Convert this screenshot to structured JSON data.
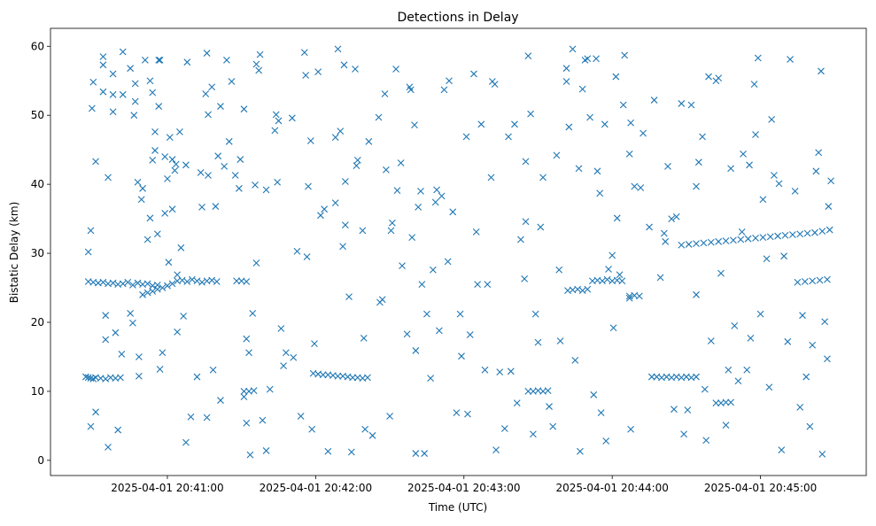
{
  "chart_data": {
    "type": "scatter",
    "title": "Detections in Delay",
    "xlabel": "Time (UTC)",
    "ylabel": "Bistatic Delay (km)",
    "x_units": "seconds after 2025-04-01 20:40:00",
    "xlim": [
      12.7,
      342.8
    ],
    "ylim": [
      -2.2,
      62.6
    ],
    "grid": false,
    "marker": "x",
    "color": "#1f77b4",
    "x_ticks": [
      {
        "value": 60,
        "label": "2025-04-01 20:41:00"
      },
      {
        "value": 120,
        "label": "2025-04-01 20:42:00"
      },
      {
        "value": 180,
        "label": "2025-04-01 20:43:00"
      },
      {
        "value": 240,
        "label": "2025-04-01 20:44:00"
      },
      {
        "value": 300,
        "label": "2025-04-01 20:45:00"
      }
    ],
    "y_ticks": [
      {
        "value": 0,
        "label": "0"
      },
      {
        "value": 10,
        "label": "10"
      },
      {
        "value": 20,
        "label": "20"
      },
      {
        "value": 30,
        "label": "30"
      },
      {
        "value": 40,
        "label": "40"
      },
      {
        "value": 50,
        "label": "50"
      },
      {
        "value": 60,
        "label": "60"
      }
    ],
    "points": [
      [
        28,
        30.2
      ],
      [
        29,
        4.9
      ],
      [
        29,
        33.3
      ],
      [
        30,
        54.8
      ],
      [
        29.5,
        51
      ],
      [
        31,
        43.3
      ],
      [
        31,
        7
      ],
      [
        34,
        58.5
      ],
      [
        34,
        57.3
      ],
      [
        34,
        53.4
      ],
      [
        35,
        17.5
      ],
      [
        35,
        21
      ],
      [
        36,
        41
      ],
      [
        36,
        1.9
      ],
      [
        38,
        56
      ],
      [
        38,
        50.5
      ],
      [
        38,
        53
      ],
      [
        39,
        18.5
      ],
      [
        40,
        4.4
      ],
      [
        42,
        59.2
      ],
      [
        42,
        53
      ],
      [
        41.5,
        15.4
      ],
      [
        45,
        56.8
      ],
      [
        45,
        21.3
      ],
      [
        46.5,
        50
      ],
      [
        47,
        52
      ],
      [
        46,
        19.9
      ],
      [
        47,
        54.6
      ],
      [
        48,
        40.3
      ],
      [
        48.5,
        12.2
      ],
      [
        48.5,
        15
      ],
      [
        50,
        39.4
      ],
      [
        49.5,
        37.8
      ],
      [
        51,
        58
      ],
      [
        52,
        32
      ],
      [
        53,
        55
      ],
      [
        53,
        35.1
      ],
      [
        54,
        53.3
      ],
      [
        54,
        43.5
      ],
      [
        55,
        47.6
      ],
      [
        55,
        44.9
      ],
      [
        56,
        32.8
      ],
      [
        56.5,
        51.3
      ],
      [
        56.5,
        58
      ],
      [
        57,
        13.2
      ],
      [
        57,
        58
      ],
      [
        58,
        15.6
      ],
      [
        59,
        35.8
      ],
      [
        59,
        44
      ],
      [
        60,
        40.8
      ],
      [
        60.5,
        28.7
      ],
      [
        61,
        46.8
      ],
      [
        62,
        43.6
      ],
      [
        62,
        36.4
      ],
      [
        63,
        42
      ],
      [
        63.5,
        42.9
      ],
      [
        64,
        26.9
      ],
      [
        64,
        18.6
      ],
      [
        65,
        47.6
      ],
      [
        65.5,
        30.8
      ],
      [
        66.5,
        20.9
      ],
      [
        67.5,
        2.6
      ],
      [
        67.5,
        42.8
      ],
      [
        68,
        57.7
      ],
      [
        69.5,
        6.3
      ],
      [
        72,
        12.1
      ],
      [
        73.5,
        41.7
      ],
      [
        74,
        36.7
      ],
      [
        75.5,
        53.1
      ],
      [
        76,
        59
      ],
      [
        76,
        6.2
      ],
      [
        76.5,
        50.1
      ],
      [
        76.5,
        41.3
      ],
      [
        78,
        54.1
      ],
      [
        78.5,
        13.1
      ],
      [
        79.5,
        36.8
      ],
      [
        80.5,
        44.1
      ],
      [
        81.5,
        51.3
      ],
      [
        81.5,
        8.7
      ],
      [
        83,
        42.6
      ],
      [
        84,
        58
      ],
      [
        85,
        46.2
      ],
      [
        86,
        54.9
      ],
      [
        87.5,
        41.3
      ],
      [
        89.5,
        43.6
      ],
      [
        89,
        39.4
      ],
      [
        91,
        50.9
      ],
      [
        91,
        9.2
      ],
      [
        92,
        5.4
      ],
      [
        92,
        17.6
      ],
      [
        93,
        15.6
      ],
      [
        93.5,
        0.8
      ],
      [
        94.5,
        21.3
      ],
      [
        96,
        57.4
      ],
      [
        97,
        56.5
      ],
      [
        96,
        28.6
      ],
      [
        97.5,
        58.8
      ],
      [
        95.5,
        39.9
      ],
      [
        98.5,
        5.8
      ],
      [
        100,
        1.4
      ],
      [
        100,
        39.2
      ],
      [
        101.5,
        10.3
      ],
      [
        103.5,
        47.8
      ],
      [
        104.5,
        40.3
      ],
      [
        104,
        50.1
      ],
      [
        105,
        49.2
      ],
      [
        106,
        19.1
      ],
      [
        107,
        13.7
      ],
      [
        108,
        15.6
      ],
      [
        110.5,
        49.6
      ],
      [
        111,
        14.9
      ],
      [
        112.5,
        30.3
      ],
      [
        114,
        6.4
      ],
      [
        115.5,
        59.1
      ],
      [
        116,
        55.8
      ],
      [
        116.5,
        29.5
      ],
      [
        117,
        39.7
      ],
      [
        118,
        46.3
      ],
      [
        118.5,
        4.5
      ],
      [
        119.5,
        16.9
      ],
      [
        121,
        56.3
      ],
      [
        122,
        35.5
      ],
      [
        123.5,
        36.4
      ],
      [
        125,
        1.3
      ],
      [
        128,
        37.3
      ],
      [
        128,
        46.8
      ],
      [
        129,
        59.6
      ],
      [
        130,
        47.7
      ],
      [
        131.5,
        57.3
      ],
      [
        131,
        31
      ],
      [
        132,
        40.4
      ],
      [
        132,
        34.1
      ],
      [
        133.5,
        23.7
      ],
      [
        134.5,
        1.2
      ],
      [
        136,
        56.7
      ],
      [
        136.5,
        42.7
      ],
      [
        137,
        43.5
      ],
      [
        139,
        33.3
      ],
      [
        139.5,
        17.7
      ],
      [
        140,
        4.5
      ],
      [
        141.5,
        46.2
      ],
      [
        143,
        3.6
      ],
      [
        145.5,
        49.7
      ],
      [
        146,
        22.9
      ],
      [
        147,
        23.3
      ],
      [
        148,
        53.1
      ],
      [
        148.5,
        42.1
      ],
      [
        150,
        6.4
      ],
      [
        150.5,
        33.3
      ],
      [
        151,
        34.4
      ],
      [
        152.5,
        56.7
      ],
      [
        153,
        39.1
      ],
      [
        154.5,
        43.1
      ],
      [
        155,
        28.2
      ],
      [
        157,
        18.3
      ],
      [
        158,
        54.1
      ],
      [
        158.5,
        53.7
      ],
      [
        159,
        32.3
      ],
      [
        160,
        48.6
      ],
      [
        160.5,
        1
      ],
      [
        160.5,
        15.9
      ],
      [
        161.5,
        36.7
      ],
      [
        162.5,
        39
      ],
      [
        163,
        25.5
      ],
      [
        164,
        1
      ],
      [
        165,
        21.2
      ],
      [
        166.5,
        11.9
      ],
      [
        167.5,
        27.6
      ],
      [
        168.5,
        37.4
      ],
      [
        169,
        39.2
      ],
      [
        170,
        18.8
      ],
      [
        171,
        38.3
      ],
      [
        172,
        53.7
      ],
      [
        173.5,
        28.8
      ],
      [
        174,
        55
      ],
      [
        175.5,
        36
      ],
      [
        177,
        6.9
      ],
      [
        178.5,
        21.2
      ],
      [
        179,
        15.1
      ],
      [
        181,
        46.9
      ],
      [
        181.5,
        6.7
      ],
      [
        182.5,
        18.2
      ],
      [
        184,
        56
      ],
      [
        185,
        33.1
      ],
      [
        185.5,
        25.5
      ],
      [
        187,
        48.7
      ],
      [
        188.5,
        13.1
      ],
      [
        189.5,
        25.5
      ],
      [
        191,
        41
      ],
      [
        191.5,
        54.9
      ],
      [
        192.5,
        54.5
      ],
      [
        193,
        1.5
      ],
      [
        194.5,
        12.8
      ],
      [
        196.5,
        4.6
      ],
      [
        198,
        46.9
      ],
      [
        199,
        12.9
      ],
      [
        200.5,
        48.7
      ],
      [
        201.5,
        8.3
      ],
      [
        203,
        32
      ],
      [
        204.5,
        26.3
      ],
      [
        205,
        34.6
      ],
      [
        205,
        43.3
      ],
      [
        206,
        58.6
      ],
      [
        207,
        50.2
      ],
      [
        208,
        3.8
      ],
      [
        209,
        21.2
      ],
      [
        210,
        17.1
      ],
      [
        211,
        33.8
      ],
      [
        212,
        41
      ],
      [
        214.5,
        7.8
      ],
      [
        216,
        4.9
      ],
      [
        217.5,
        44.2
      ],
      [
        218.5,
        27.6
      ],
      [
        219,
        17.3
      ],
      [
        221.5,
        56.8
      ],
      [
        221.5,
        54.9
      ],
      [
        222.5,
        48.3
      ],
      [
        224,
        59.6
      ],
      [
        225,
        14.5
      ],
      [
        226.5,
        42.3
      ],
      [
        227,
        1.3
      ],
      [
        228,
        53.8
      ],
      [
        229,
        58
      ],
      [
        230,
        58.2
      ],
      [
        231,
        49.7
      ],
      [
        232.5,
        9.5
      ],
      [
        233.5,
        58.2
      ],
      [
        234,
        41.9
      ],
      [
        235,
        38.7
      ],
      [
        235.5,
        6.9
      ],
      [
        237,
        48.7
      ],
      [
        237.5,
        2.8
      ],
      [
        238.5,
        27.7
      ],
      [
        240,
        29.7
      ],
      [
        240.5,
        19.2
      ],
      [
        241.5,
        55.6
      ],
      [
        242,
        35.1
      ],
      [
        243,
        26.9
      ],
      [
        244.5,
        51.5
      ],
      [
        245,
        58.7
      ],
      [
        247,
        23.5
      ],
      [
        247,
        44.4
      ],
      [
        247.5,
        4.5
      ],
      [
        247.5,
        48.9
      ],
      [
        249,
        39.7
      ],
      [
        251.5,
        39.5
      ],
      [
        252.5,
        47.4
      ],
      [
        255,
        33.8
      ],
      [
        257,
        52.2
      ],
      [
        259.5,
        26.5
      ],
      [
        261,
        32.9
      ],
      [
        261.5,
        31.7
      ],
      [
        262.5,
        42.6
      ],
      [
        264,
        35
      ],
      [
        265,
        7.4
      ],
      [
        266,
        35.3
      ],
      [
        268,
        51.7
      ],
      [
        269,
        3.8
      ],
      [
        270.5,
        7.3
      ],
      [
        272,
        51.5
      ],
      [
        274,
        39.7
      ],
      [
        274,
        24
      ],
      [
        275,
        43.2
      ],
      [
        276.5,
        46.9
      ],
      [
        277.5,
        10.3
      ],
      [
        278,
        2.9
      ],
      [
        279,
        55.6
      ],
      [
        280,
        17.3
      ],
      [
        282,
        55
      ],
      [
        283,
        55.4
      ],
      [
        284,
        27.1
      ],
      [
        286,
        5.1
      ],
      [
        287,
        13.1
      ],
      [
        288,
        42.3
      ],
      [
        289.5,
        19.5
      ],
      [
        291,
        11.5
      ],
      [
        292.5,
        33.1
      ],
      [
        293,
        44.4
      ],
      [
        294.5,
        13.1
      ],
      [
        295.5,
        42.8
      ],
      [
        296,
        17.7
      ],
      [
        297.5,
        54.5
      ],
      [
        298,
        47.2
      ],
      [
        299,
        58.3
      ],
      [
        300,
        21.2
      ],
      [
        301,
        37.8
      ],
      [
        302.5,
        29.2
      ],
      [
        303.5,
        10.6
      ],
      [
        304.5,
        49.4
      ],
      [
        305.5,
        41.3
      ],
      [
        307.5,
        40.1
      ],
      [
        308.5,
        1.5
      ],
      [
        309.5,
        29.6
      ],
      [
        311,
        17.2
      ],
      [
        312,
        58.1
      ],
      [
        314,
        39
      ],
      [
        316,
        7.7
      ],
      [
        317,
        21
      ],
      [
        318.5,
        12.1
      ],
      [
        320,
        4.9
      ],
      [
        321,
        16.7
      ],
      [
        322.5,
        41.9
      ],
      [
        323.5,
        44.6
      ],
      [
        324.5,
        56.4
      ],
      [
        325,
        0.9
      ],
      [
        326,
        20.1
      ],
      [
        327,
        14.7
      ],
      [
        327.5,
        36.8
      ],
      [
        328.5,
        40.5
      ],
      [
        27,
        12.1
      ],
      [
        28,
        12
      ],
      [
        29,
        11.9
      ],
      [
        30,
        11.8
      ],
      [
        31,
        12
      ],
      [
        33,
        11.9
      ],
      [
        35,
        11.8
      ],
      [
        37,
        12
      ],
      [
        39,
        11.9
      ],
      [
        41,
        12
      ],
      [
        28,
        25.9
      ],
      [
        30,
        25.8
      ],
      [
        32,
        25.7
      ],
      [
        34,
        25.8
      ],
      [
        36,
        25.6
      ],
      [
        38,
        25.7
      ],
      [
        40,
        25.5
      ],
      [
        42,
        25.6
      ],
      [
        44,
        25.8
      ],
      [
        46,
        25.4
      ],
      [
        48,
        25.7
      ],
      [
        50,
        25.5
      ],
      [
        52,
        25.6
      ],
      [
        54,
        25.3
      ],
      [
        56,
        25.4
      ],
      [
        50,
        24
      ],
      [
        52,
        24.3
      ],
      [
        54,
        24.5
      ],
      [
        56,
        24.8
      ],
      [
        58,
        25
      ],
      [
        60,
        25.3
      ],
      [
        62,
        25.6
      ],
      [
        64,
        26
      ],
      [
        66,
        26.1
      ],
      [
        68,
        25.9
      ],
      [
        70,
        26.2
      ],
      [
        72,
        26
      ],
      [
        74,
        25.8
      ],
      [
        76,
        26
      ],
      [
        78,
        26.1
      ],
      [
        80,
        25.9
      ],
      [
        88,
        26
      ],
      [
        90,
        26
      ],
      [
        92,
        25.9
      ],
      [
        91,
        10
      ],
      [
        93,
        10
      ],
      [
        95,
        10.1
      ],
      [
        119,
        12.6
      ],
      [
        121,
        12.5
      ],
      [
        123,
        12.4
      ],
      [
        125,
        12.4
      ],
      [
        127,
        12.3
      ],
      [
        129,
        12.2
      ],
      [
        131,
        12.2
      ],
      [
        133,
        12.1
      ],
      [
        135,
        12
      ],
      [
        137,
        12
      ],
      [
        139,
        11.9
      ],
      [
        141,
        12
      ],
      [
        206,
        10
      ],
      [
        208,
        10
      ],
      [
        210,
        10.1
      ],
      [
        212,
        10
      ],
      [
        214,
        10.1
      ],
      [
        222,
        24.6
      ],
      [
        224,
        24.7
      ],
      [
        226,
        24.8
      ],
      [
        228,
        24.6
      ],
      [
        230,
        24.8
      ],
      [
        232,
        26
      ],
      [
        234,
        26.1
      ],
      [
        236,
        26
      ],
      [
        238,
        26.2
      ],
      [
        240,
        26
      ],
      [
        242,
        26.1
      ],
      [
        244,
        26
      ],
      [
        247,
        23.8
      ],
      [
        249,
        23.9
      ],
      [
        251,
        23.8
      ],
      [
        256,
        12.1
      ],
      [
        258,
        12.1
      ],
      [
        260,
        12
      ],
      [
        262,
        12.1
      ],
      [
        264,
        12
      ],
      [
        266,
        12.1
      ],
      [
        268,
        12
      ],
      [
        270,
        12.1
      ],
      [
        272,
        12
      ],
      [
        274,
        12.1
      ],
      [
        268,
        31.2
      ],
      [
        271,
        31.3
      ],
      [
        274,
        31.4
      ],
      [
        277,
        31.5
      ],
      [
        280,
        31.6
      ],
      [
        283,
        31.7
      ],
      [
        286,
        31.8
      ],
      [
        289,
        31.9
      ],
      [
        292,
        32
      ],
      [
        295,
        32.1
      ],
      [
        298,
        32.2
      ],
      [
        301,
        32.3
      ],
      [
        304,
        32.4
      ],
      [
        307,
        32.5
      ],
      [
        310,
        32.6
      ],
      [
        313,
        32.7
      ],
      [
        316,
        32.8
      ],
      [
        319,
        32.9
      ],
      [
        322,
        33
      ],
      [
        325,
        33.2
      ],
      [
        328,
        33.4
      ],
      [
        315,
        25.8
      ],
      [
        318,
        25.9
      ],
      [
        321,
        26
      ],
      [
        324,
        26.1
      ],
      [
        327,
        26.2
      ],
      [
        282,
        8.3
      ],
      [
        284,
        8.3
      ],
      [
        286,
        8.4
      ],
      [
        288,
        8.4
      ]
    ]
  }
}
